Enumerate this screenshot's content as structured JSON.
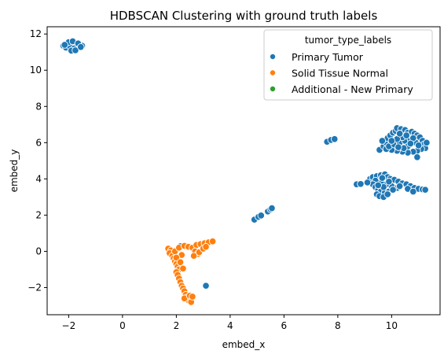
{
  "chart_data": {
    "type": "scatter",
    "title": "HDBSCAN Clustering with ground truth labels",
    "xlabel": "embed_x",
    "ylabel": "embed_y",
    "xlim": [
      -2.8,
      11.8
    ],
    "ylim": [
      -3.5,
      12.4
    ],
    "xticks": [
      -2,
      0,
      2,
      4,
      6,
      8,
      10
    ],
    "yticks": [
      -2,
      0,
      2,
      4,
      6,
      8,
      10,
      12
    ],
    "grid": false,
    "legend": {
      "title": "tumor_type_labels",
      "placement": "top-right",
      "entries": [
        "Primary Tumor",
        "Solid Tissue Normal",
        "Additional - New Primary"
      ]
    },
    "colors": {
      "Primary Tumor": "#1f77b4",
      "Solid Tissue Normal": "#ff7f0e",
      "Additional - New Primary": "#2ca02c"
    },
    "series": [
      {
        "name": "Primary Tumor",
        "points": [
          [
            -2.2,
            11.35
          ],
          [
            -2.05,
            11.45
          ],
          [
            -1.9,
            11.5
          ],
          [
            -1.75,
            11.42
          ],
          [
            -1.6,
            11.38
          ],
          [
            -1.5,
            11.35
          ],
          [
            -2.1,
            11.25
          ],
          [
            -1.95,
            11.3
          ],
          [
            -1.8,
            11.2
          ],
          [
            -1.9,
            11.08
          ],
          [
            -1.75,
            11.1
          ],
          [
            -2.0,
            11.55
          ],
          [
            -1.85,
            11.6
          ],
          [
            -2.15,
            11.4
          ],
          [
            -1.65,
            11.48
          ],
          [
            -1.55,
            11.28
          ],
          [
            7.6,
            6.05
          ],
          [
            7.75,
            6.15
          ],
          [
            7.88,
            6.2
          ],
          [
            4.9,
            1.75
          ],
          [
            5.05,
            1.9
          ],
          [
            5.15,
            1.98
          ],
          [
            5.4,
            2.2
          ],
          [
            5.5,
            2.32
          ],
          [
            5.55,
            2.38
          ],
          [
            2.15,
            0.28
          ],
          [
            3.1,
            -1.9
          ],
          [
            9.55,
            5.6
          ],
          [
            9.7,
            5.8
          ],
          [
            9.8,
            6.0
          ],
          [
            9.85,
            6.25
          ],
          [
            9.95,
            6.4
          ],
          [
            10.05,
            6.55
          ],
          [
            10.15,
            6.65
          ],
          [
            10.2,
            6.8
          ],
          [
            10.35,
            6.75
          ],
          [
            10.5,
            6.7
          ],
          [
            10.6,
            6.55
          ],
          [
            10.75,
            6.6
          ],
          [
            10.85,
            6.5
          ],
          [
            10.95,
            6.4
          ],
          [
            11.05,
            6.3
          ],
          [
            11.15,
            6.1
          ],
          [
            11.2,
            5.9
          ],
          [
            11.25,
            5.7
          ],
          [
            11.1,
            5.65
          ],
          [
            10.95,
            5.55
          ],
          [
            10.8,
            5.5
          ],
          [
            10.6,
            5.45
          ],
          [
            10.4,
            5.5
          ],
          [
            10.2,
            5.55
          ],
          [
            10.0,
            5.6
          ],
          [
            9.8,
            5.65
          ],
          [
            9.9,
            5.8
          ],
          [
            10.1,
            5.9
          ],
          [
            10.3,
            6.0
          ],
          [
            10.5,
            6.1
          ],
          [
            10.7,
            6.2
          ],
          [
            10.9,
            6.0
          ],
          [
            11.0,
            5.85
          ],
          [
            10.6,
            5.8
          ],
          [
            10.4,
            6.3
          ],
          [
            10.2,
            6.2
          ],
          [
            10.0,
            6.1
          ],
          [
            10.8,
            6.25
          ],
          [
            10.55,
            6.4
          ],
          [
            10.3,
            6.5
          ],
          [
            10.7,
            5.95
          ],
          [
            10.95,
            5.2
          ],
          [
            9.65,
            6.1
          ],
          [
            11.3,
            6.0
          ],
          [
            10.45,
            5.7
          ],
          [
            10.25,
            5.75
          ],
          [
            9.2,
            4.0
          ],
          [
            9.3,
            4.1
          ],
          [
            9.45,
            4.15
          ],
          [
            9.6,
            4.2
          ],
          [
            9.75,
            4.25
          ],
          [
            9.85,
            4.1
          ],
          [
            9.95,
            4.0
          ],
          [
            10.1,
            3.95
          ],
          [
            10.25,
            3.85
          ],
          [
            10.4,
            3.75
          ],
          [
            10.55,
            3.7
          ],
          [
            10.7,
            3.6
          ],
          [
            10.85,
            3.5
          ],
          [
            11.0,
            3.45
          ],
          [
            11.15,
            3.42
          ],
          [
            11.25,
            3.4
          ],
          [
            10.2,
            3.5
          ],
          [
            10.0,
            3.6
          ],
          [
            9.8,
            3.7
          ],
          [
            9.6,
            3.8
          ],
          [
            9.4,
            3.9
          ],
          [
            9.3,
            3.7
          ],
          [
            9.4,
            3.55
          ],
          [
            9.5,
            3.4
          ],
          [
            9.6,
            3.3
          ],
          [
            9.75,
            3.25
          ],
          [
            9.9,
            3.3
          ],
          [
            10.05,
            3.4
          ],
          [
            9.45,
            3.15
          ],
          [
            9.55,
            3.05
          ],
          [
            9.7,
            3.0
          ],
          [
            9.85,
            3.15
          ],
          [
            9.7,
            3.55
          ],
          [
            9.9,
            3.85
          ],
          [
            10.3,
            3.6
          ],
          [
            10.6,
            3.45
          ],
          [
            10.8,
            3.3
          ],
          [
            8.7,
            3.7
          ],
          [
            8.85,
            3.72
          ],
          [
            9.1,
            3.8
          ],
          [
            9.65,
            4.05
          ],
          [
            9.5,
            3.65
          ]
        ]
      },
      {
        "name": "Solid Tissue Normal",
        "points": [
          [
            1.7,
            0.15
          ],
          [
            1.8,
            0.05
          ],
          [
            1.75,
            -0.1
          ],
          [
            1.85,
            -0.25
          ],
          [
            1.9,
            -0.4
          ],
          [
            1.95,
            -0.55
          ],
          [
            2.0,
            -0.7
          ],
          [
            2.05,
            -0.85
          ],
          [
            2.1,
            -1.0
          ],
          [
            2.0,
            -1.15
          ],
          [
            2.05,
            -1.3
          ],
          [
            2.1,
            -1.5
          ],
          [
            2.15,
            -1.7
          ],
          [
            2.2,
            -1.9
          ],
          [
            2.25,
            -2.05
          ],
          [
            2.3,
            -2.2
          ],
          [
            2.35,
            -2.4
          ],
          [
            2.4,
            -2.55
          ],
          [
            2.45,
            -2.7
          ],
          [
            2.55,
            -2.8
          ],
          [
            2.3,
            -2.6
          ],
          [
            2.5,
            -2.45
          ],
          [
            2.6,
            -2.5
          ],
          [
            1.95,
            0.0
          ],
          [
            2.1,
            0.2
          ],
          [
            2.3,
            0.3
          ],
          [
            2.45,
            0.25
          ],
          [
            2.6,
            0.2
          ],
          [
            2.75,
            0.35
          ],
          [
            2.9,
            0.4
          ],
          [
            3.05,
            0.45
          ],
          [
            3.2,
            0.5
          ],
          [
            3.35,
            0.55
          ],
          [
            2.7,
            0.0
          ],
          [
            2.8,
            -0.15
          ],
          [
            2.65,
            -0.25
          ],
          [
            2.85,
            -0.05
          ],
          [
            3.0,
            0.15
          ],
          [
            3.1,
            0.25
          ],
          [
            2.2,
            -0.2
          ],
          [
            2.0,
            -0.35
          ],
          [
            2.15,
            -0.6
          ],
          [
            2.25,
            -0.95
          ]
        ]
      },
      {
        "name": "Additional - New Primary",
        "points": []
      }
    ]
  }
}
